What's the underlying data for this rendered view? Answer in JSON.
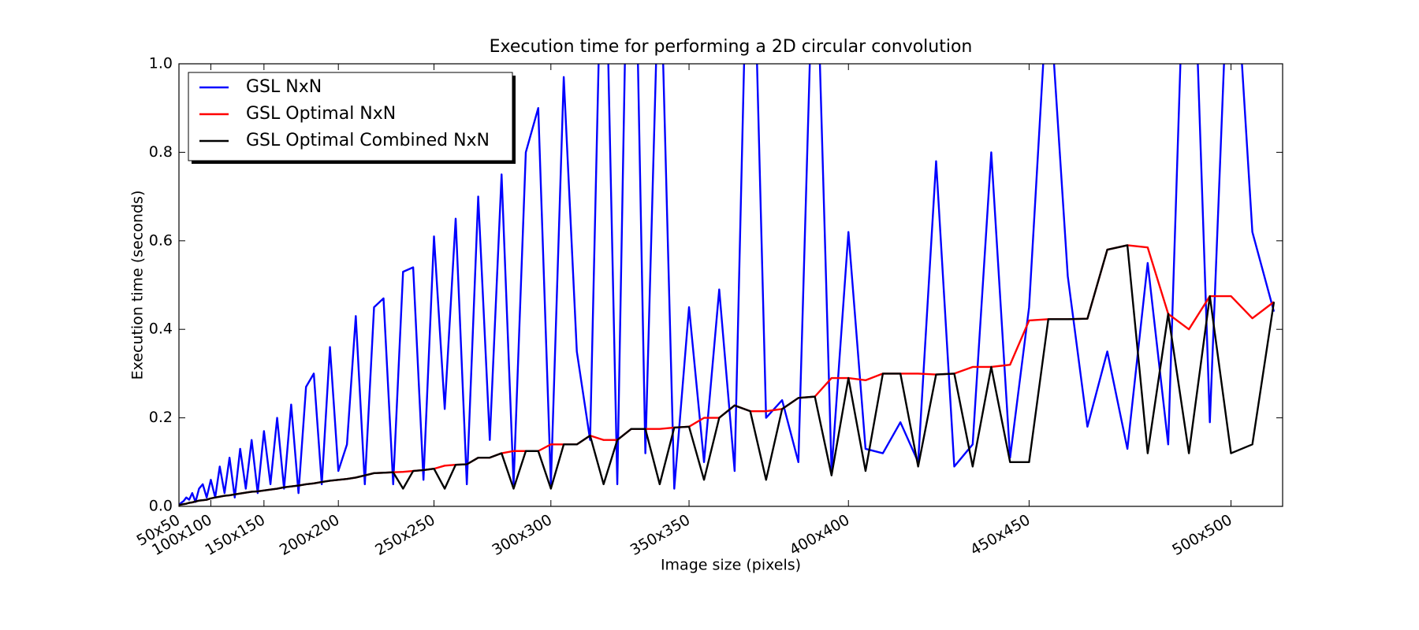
{
  "chart_data": {
    "type": "line",
    "title": "Execution time for performing a 2D circular convolution",
    "xlabel": "Image size (pixels)",
    "ylabel": "Execution time (seconds)",
    "legend": "upper left",
    "grid": false,
    "xlim": [
      2500,
      262144
    ],
    "ylim": [
      0,
      1
    ],
    "xticks": [
      {
        "value": 2500,
        "label": "50x50"
      },
      {
        "value": 10000,
        "label": "100x100"
      },
      {
        "value": 22500,
        "label": "150x150"
      },
      {
        "value": 40000,
        "label": "200x200"
      },
      {
        "value": 62500,
        "label": "250x250"
      },
      {
        "value": 90000,
        "label": "300x300"
      },
      {
        "value": 122500,
        "label": "350x350"
      },
      {
        "value": 160000,
        "label": "400x400"
      },
      {
        "value": 202500,
        "label": "450x450"
      },
      {
        "value": 250000,
        "label": "500x500"
      }
    ],
    "yticks": [
      {
        "value": 0,
        "label": "0.0"
      },
      0.2,
      0.4,
      0.6,
      0.8,
      {
        "value": 1,
        "label": "1.0"
      }
    ],
    "x": [
      2500,
      3025,
      3600,
      4225,
      4900,
      5625,
      6400,
      7225,
      8100,
      9025,
      10000,
      11025,
      12100,
      13225,
      14400,
      15625,
      16900,
      18225,
      19600,
      21025,
      22500,
      24025,
      25600,
      27225,
      28900,
      30625,
      32400,
      34225,
      36100,
      38025,
      40000,
      42025,
      44100,
      46225,
      48400,
      50625,
      52900,
      55225,
      57600,
      60025,
      62500,
      65025,
      67600,
      70225,
      72900,
      75625,
      78400,
      81225,
      84100,
      87025,
      90000,
      93025,
      96100,
      99225,
      102400,
      105625,
      108900,
      112225,
      115600,
      119025,
      122500,
      126025,
      129600,
      133225,
      136900,
      140625,
      144400,
      148225,
      152100,
      156025,
      160000,
      164025,
      168100,
      172225,
      176400,
      180625,
      184900,
      189225,
      193600,
      198025,
      202500,
      207025,
      211600,
      216225,
      220900,
      225625,
      230400,
      235225,
      240100,
      245025,
      250000,
      255025,
      260100
    ],
    "series": [
      {
        "name": "GSL NxN",
        "color": "#0000ff",
        "values": [
          0.003,
          0.008,
          0.012,
          0.02,
          0.015,
          0.03,
          0.01,
          0.04,
          0.05,
          0.02,
          0.06,
          0.02,
          0.09,
          0.03,
          0.11,
          0.02,
          0.13,
          0.04,
          0.15,
          0.03,
          0.17,
          0.05,
          0.2,
          0.04,
          0.23,
          0.03,
          0.27,
          0.3,
          0.05,
          0.36,
          0.08,
          0.14,
          0.43,
          0.05,
          0.45,
          0.47,
          0.05,
          0.53,
          0.54,
          0.06,
          0.61,
          0.22,
          0.65,
          0.05,
          0.7,
          0.15,
          0.75,
          0.05,
          0.8,
          0.9,
          0.05,
          0.97,
          0.35,
          0.15,
          1.5,
          0.05,
          1.8,
          0.12,
          1.3,
          0.04,
          0.45,
          0.1,
          0.49,
          0.08,
          1.6,
          0.2,
          0.24,
          0.1,
          1.4,
          0.08,
          0.62,
          0.13,
          0.12,
          0.19,
          0.1,
          0.78,
          0.09,
          0.14,
          0.8,
          0.11,
          0.45,
          1.2,
          0.52,
          0.18,
          0.35,
          0.13,
          0.55,
          0.14,
          1.6,
          0.19,
          1.4,
          0.62,
          0.44
        ]
      },
      {
        "name": "GSL Optimal NxN",
        "color": "#ff0000",
        "values": [
          0.003,
          0.004,
          0.005,
          0.006,
          0.008,
          0.009,
          0.011,
          0.013,
          0.014,
          0.015,
          0.018,
          0.02,
          0.022,
          0.024,
          0.025,
          0.027,
          0.029,
          0.031,
          0.033,
          0.034,
          0.036,
          0.038,
          0.04,
          0.043,
          0.045,
          0.047,
          0.05,
          0.052,
          0.055,
          0.058,
          0.06,
          0.062,
          0.065,
          0.07,
          0.075,
          0.076,
          0.077,
          0.078,
          0.08,
          0.082,
          0.085,
          0.092,
          0.094,
          0.095,
          0.11,
          0.11,
          0.12,
          0.125,
          0.125,
          0.125,
          0.14,
          0.14,
          0.14,
          0.16,
          0.15,
          0.15,
          0.175,
          0.175,
          0.175,
          0.178,
          0.18,
          0.2,
          0.2,
          0.228,
          0.215,
          0.215,
          0.22,
          0.245,
          0.248,
          0.29,
          0.29,
          0.285,
          0.3,
          0.3,
          0.3,
          0.298,
          0.3,
          0.315,
          0.315,
          0.32,
          0.42,
          0.423,
          0.423,
          0.424,
          0.58,
          0.59,
          0.585,
          0.435,
          0.4,
          0.475,
          0.475,
          0.425,
          0.462
        ]
      },
      {
        "name": "GSL Optimal Combined NxN",
        "color": "#000000",
        "values": [
          0.003,
          0.004,
          0.005,
          0.006,
          0.008,
          0.009,
          0.011,
          0.013,
          0.014,
          0.015,
          0.018,
          0.02,
          0.022,
          0.024,
          0.025,
          0.027,
          0.029,
          0.031,
          0.033,
          0.034,
          0.036,
          0.038,
          0.04,
          0.043,
          0.045,
          0.047,
          0.05,
          0.052,
          0.055,
          0.058,
          0.06,
          0.062,
          0.065,
          0.07,
          0.075,
          0.076,
          0.077,
          0.04,
          0.08,
          0.082,
          0.085,
          0.04,
          0.094,
          0.095,
          0.11,
          0.11,
          0.12,
          0.04,
          0.125,
          0.125,
          0.04,
          0.14,
          0.14,
          0.16,
          0.05,
          0.15,
          0.175,
          0.175,
          0.05,
          0.178,
          0.18,
          0.06,
          0.2,
          0.228,
          0.215,
          0.06,
          0.22,
          0.245,
          0.248,
          0.07,
          0.29,
          0.08,
          0.3,
          0.3,
          0.09,
          0.298,
          0.3,
          0.09,
          0.315,
          0.1,
          0.1,
          0.423,
          0.423,
          0.424,
          0.58,
          0.59,
          0.12,
          0.435,
          0.12,
          0.475,
          0.12,
          0.14,
          0.462
        ]
      }
    ]
  }
}
